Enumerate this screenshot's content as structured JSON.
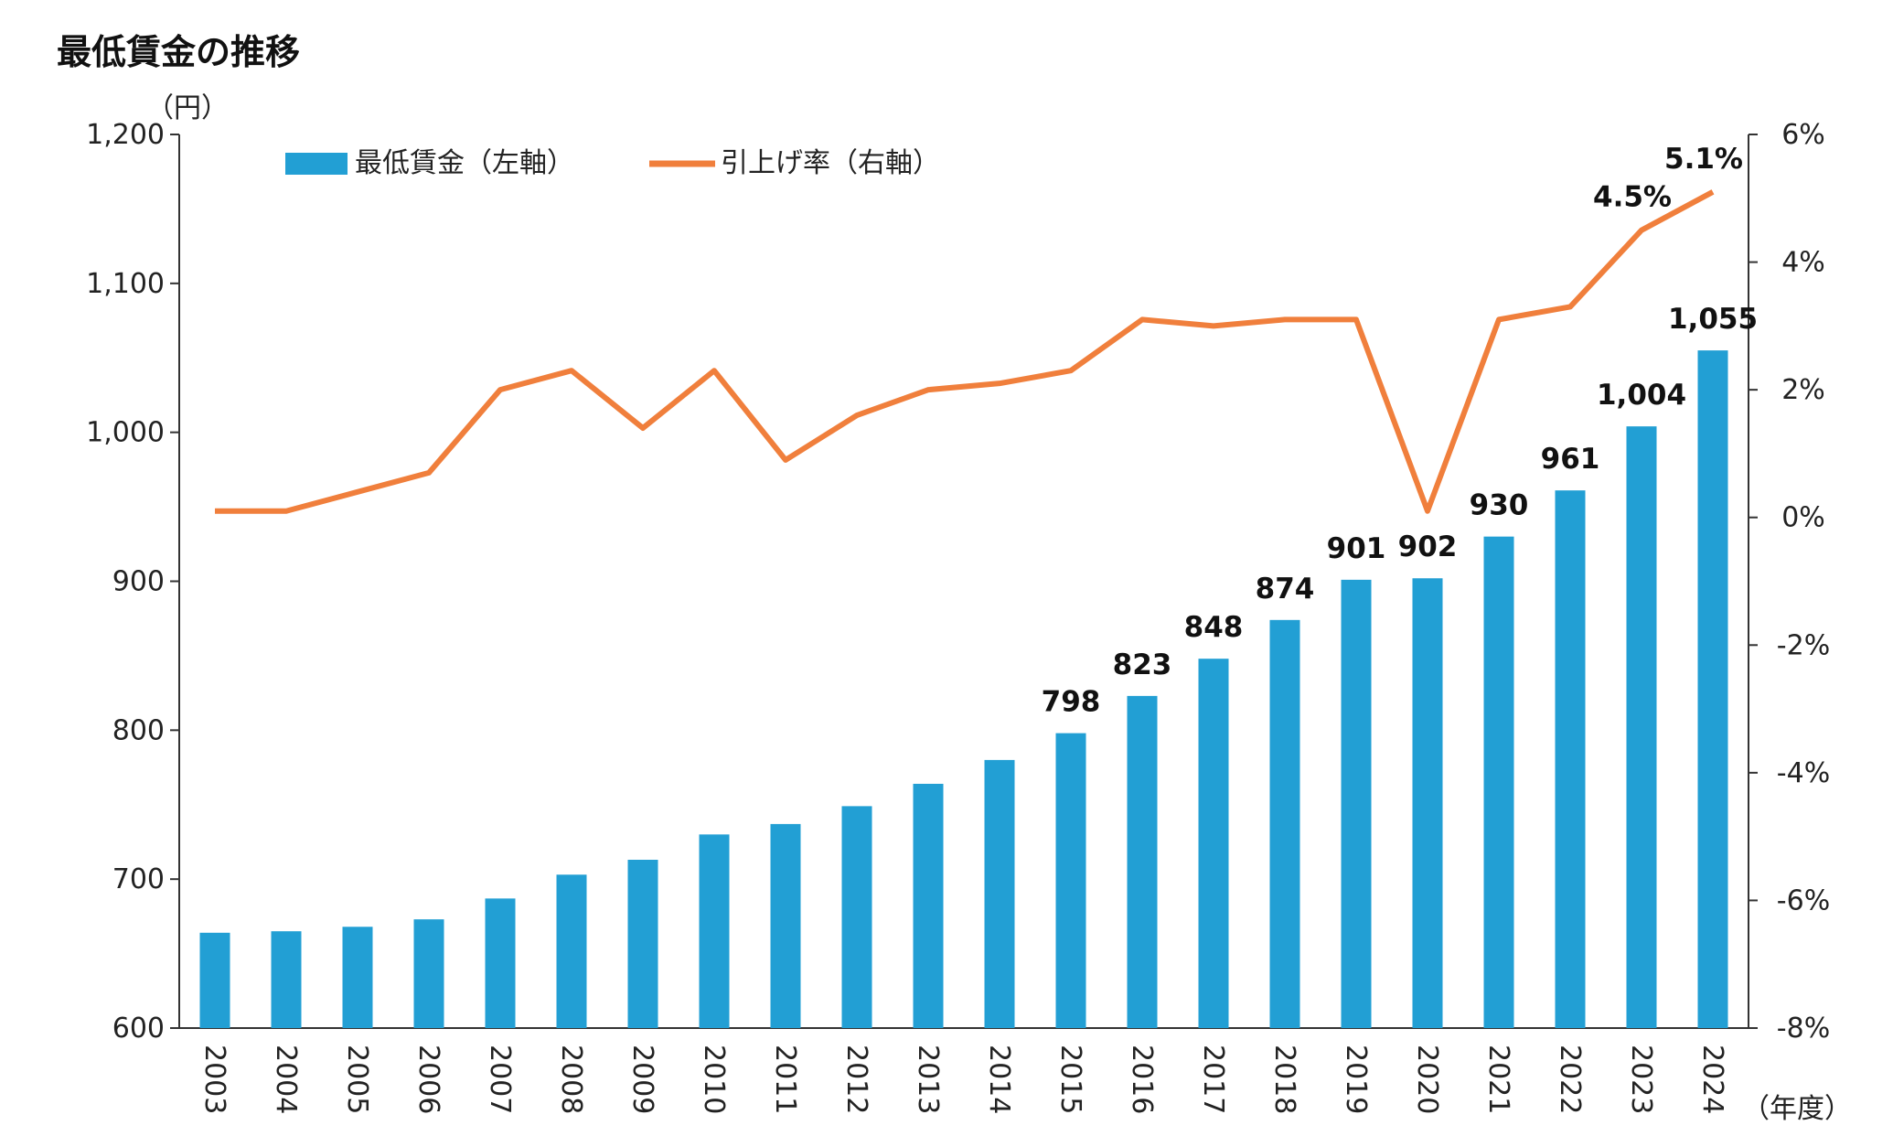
{
  "title": "最低賃金の推移",
  "chart_data": {
    "type": "bar",
    "title": "最低賃金の推移",
    "categories": [
      "2003",
      "2004",
      "2005",
      "2006",
      "2007",
      "2008",
      "2009",
      "2010",
      "2011",
      "2012",
      "2013",
      "2014",
      "2015",
      "2016",
      "2017",
      "2018",
      "2019",
      "2020",
      "2021",
      "2022",
      "2023",
      "2024"
    ],
    "series": [
      {
        "name": "最低賃金（左軸）",
        "type": "bar",
        "axis": "left",
        "color": "#229fd4",
        "values": [
          664,
          665,
          668,
          673,
          687,
          703,
          713,
          730,
          737,
          749,
          764,
          780,
          798,
          823,
          848,
          874,
          901,
          902,
          930,
          961,
          1004,
          1055
        ]
      },
      {
        "name": "引上げ率（右軸）",
        "type": "line",
        "axis": "right",
        "color": "#f07f3c",
        "values": [
          0.1,
          0.1,
          0.4,
          0.7,
          2.0,
          2.3,
          1.4,
          2.3,
          0.9,
          1.6,
          2.0,
          2.1,
          2.3,
          3.1,
          3.0,
          3.1,
          3.1,
          0.1,
          3.1,
          3.3,
          4.5,
          5.1
        ]
      }
    ],
    "left_axis": {
      "unit": "（円）",
      "ylim": [
        600,
        1200
      ],
      "ticks": [
        "600",
        "700",
        "800",
        "900",
        "1,000",
        "1,100",
        "1,200"
      ]
    },
    "right_axis": {
      "ylim": [
        -8,
        6
      ],
      "ticks": [
        "-8%",
        "-6%",
        "-4%",
        "-2%",
        "0%",
        "2%",
        "4%",
        "6%"
      ]
    },
    "x_unit": "（年度）",
    "bar_labels": {
      "798": "798",
      "823": "823",
      "848": "848",
      "874": "874",
      "901": "901",
      "902": "902",
      "930": "930",
      "961": "961",
      "1004": "1,004",
      "1055": "1,055"
    },
    "bar_label_list": [
      {
        "index": 12,
        "text": "798"
      },
      {
        "index": 13,
        "text": "823"
      },
      {
        "index": 14,
        "text": "848"
      },
      {
        "index": 15,
        "text": "874"
      },
      {
        "index": 16,
        "text": "901"
      },
      {
        "index": 17,
        "text": "902"
      },
      {
        "index": 18,
        "text": "930"
      },
      {
        "index": 19,
        "text": "961"
      },
      {
        "index": 20,
        "text": "1,004"
      },
      {
        "index": 21,
        "text": "1,055"
      }
    ],
    "line_label_list": [
      {
        "index": 20,
        "text": "4.5%"
      },
      {
        "index": 21,
        "text": "5.1%"
      }
    ],
    "legend": {
      "position": "top-left",
      "items": [
        "最低賃金（左軸）",
        "引上げ率（右軸）"
      ]
    },
    "grid": false
  }
}
